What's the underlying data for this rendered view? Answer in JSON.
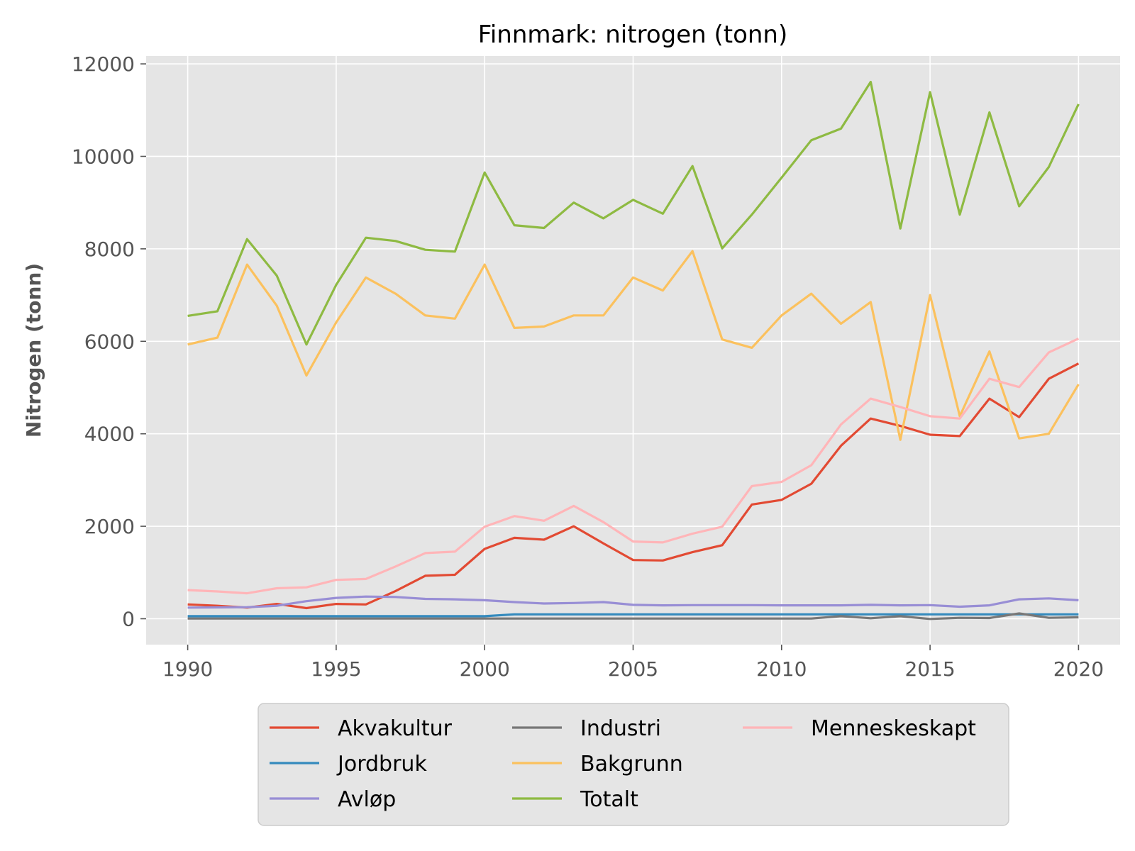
{
  "chart_data": {
    "type": "line",
    "title": "Finnmark: nitrogen (tonn)",
    "xlabel": "",
    "ylabel": "Nitrogen (tonn)",
    "xlim": [
      1988.6,
      2021.4
    ],
    "ylim": [
      -560,
      12170
    ],
    "xticks": [
      1990,
      1995,
      2000,
      2005,
      2010,
      2015,
      2020
    ],
    "yticks": [
      0,
      2000,
      4000,
      6000,
      8000,
      10000,
      12000
    ],
    "grid": true,
    "legend": "bottom-center-outside",
    "x": [
      1990,
      1991,
      1992,
      1993,
      1994,
      1995,
      1996,
      1997,
      1998,
      1999,
      2000,
      2001,
      2002,
      2003,
      2004,
      2005,
      2006,
      2007,
      2008,
      2009,
      2010,
      2011,
      2012,
      2013,
      2014,
      2015,
      2016,
      2017,
      2018,
      2019,
      2020
    ],
    "series": [
      {
        "name": "Akvakultur",
        "color": "#E24A33",
        "values": [
          310,
          280,
          240,
          320,
          230,
          320,
          310,
          600,
          930,
          950,
          1510,
          1750,
          1710,
          2000,
          1630,
          1270,
          1260,
          1440,
          1590,
          2470,
          2570,
          2920,
          3740,
          4330,
          4170,
          3980,
          3950,
          4760,
          4360,
          5190,
          5520
        ]
      },
      {
        "name": "Jordbruk",
        "color": "#348ABD",
        "values": [
          55,
          55,
          55,
          55,
          55,
          55,
          55,
          55,
          55,
          55,
          55,
          95,
          95,
          95,
          95,
          95,
          95,
          95,
          95,
          95,
          95,
          95,
          95,
          95,
          95,
          95,
          95,
          95,
          95,
          95,
          95
        ]
      },
      {
        "name": "Avløp",
        "color": "#988ED5",
        "values": [
          240,
          245,
          250,
          280,
          380,
          450,
          480,
          470,
          430,
          420,
          400,
          360,
          330,
          340,
          360,
          300,
          290,
          295,
          295,
          295,
          290,
          290,
          290,
          300,
          290,
          295,
          260,
          290,
          420,
          440,
          400
        ]
      },
      {
        "name": "Industri",
        "color": "#777777",
        "values": [
          5,
          5,
          5,
          5,
          5,
          5,
          5,
          5,
          5,
          5,
          5,
          5,
          5,
          5,
          5,
          5,
          5,
          5,
          5,
          5,
          5,
          5,
          55,
          10,
          55,
          -5,
          20,
          15,
          115,
          20,
          30
        ]
      },
      {
        "name": "Bakgrunn",
        "color": "#FBC15E",
        "values": [
          5930,
          6080,
          7660,
          6770,
          5260,
          6410,
          7380,
          7030,
          6560,
          6490,
          7660,
          6290,
          6320,
          6560,
          6560,
          7380,
          7100,
          7950,
          6040,
          5860,
          6560,
          7030,
          6380,
          6850,
          3870,
          7000,
          4380,
          5780,
          3900,
          4000,
          5070
        ]
      },
      {
        "name": "Totalt",
        "color": "#8EBA42",
        "values": [
          6550,
          6650,
          8210,
          7420,
          5930,
          7220,
          8240,
          8170,
          7980,
          7940,
          9650,
          8510,
          8450,
          9000,
          8660,
          9060,
          8760,
          9790,
          8010,
          8740,
          9540,
          10350,
          10600,
          11610,
          8440,
          11390,
          8740,
          10950,
          8920,
          9770,
          11130
        ]
      },
      {
        "name": "Menneskeskapt",
        "color": "#FFB5B8",
        "values": [
          620,
          590,
          550,
          660,
          680,
          840,
          860,
          1130,
          1420,
          1450,
          1990,
          2220,
          2120,
          2440,
          2090,
          1670,
          1650,
          1840,
          1990,
          2870,
          2960,
          3320,
          4200,
          4760,
          4580,
          4380,
          4330,
          5190,
          5010,
          5760,
          6060
        ]
      }
    ]
  }
}
